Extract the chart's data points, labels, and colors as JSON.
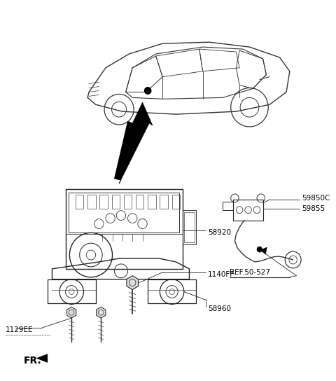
{
  "background_color": "#ffffff",
  "line_color": "#000000",
  "fig_width": 4.8,
  "fig_height": 5.44,
  "dpi": 100,
  "label_58920": "58920",
  "label_1140FF": "1140FF",
  "label_58960": "58960",
  "label_1129EE": "1129EE",
  "label_59850C": "59850C",
  "label_59855": "59855",
  "label_ref": "REF.50-527",
  "label_fr": "FR."
}
